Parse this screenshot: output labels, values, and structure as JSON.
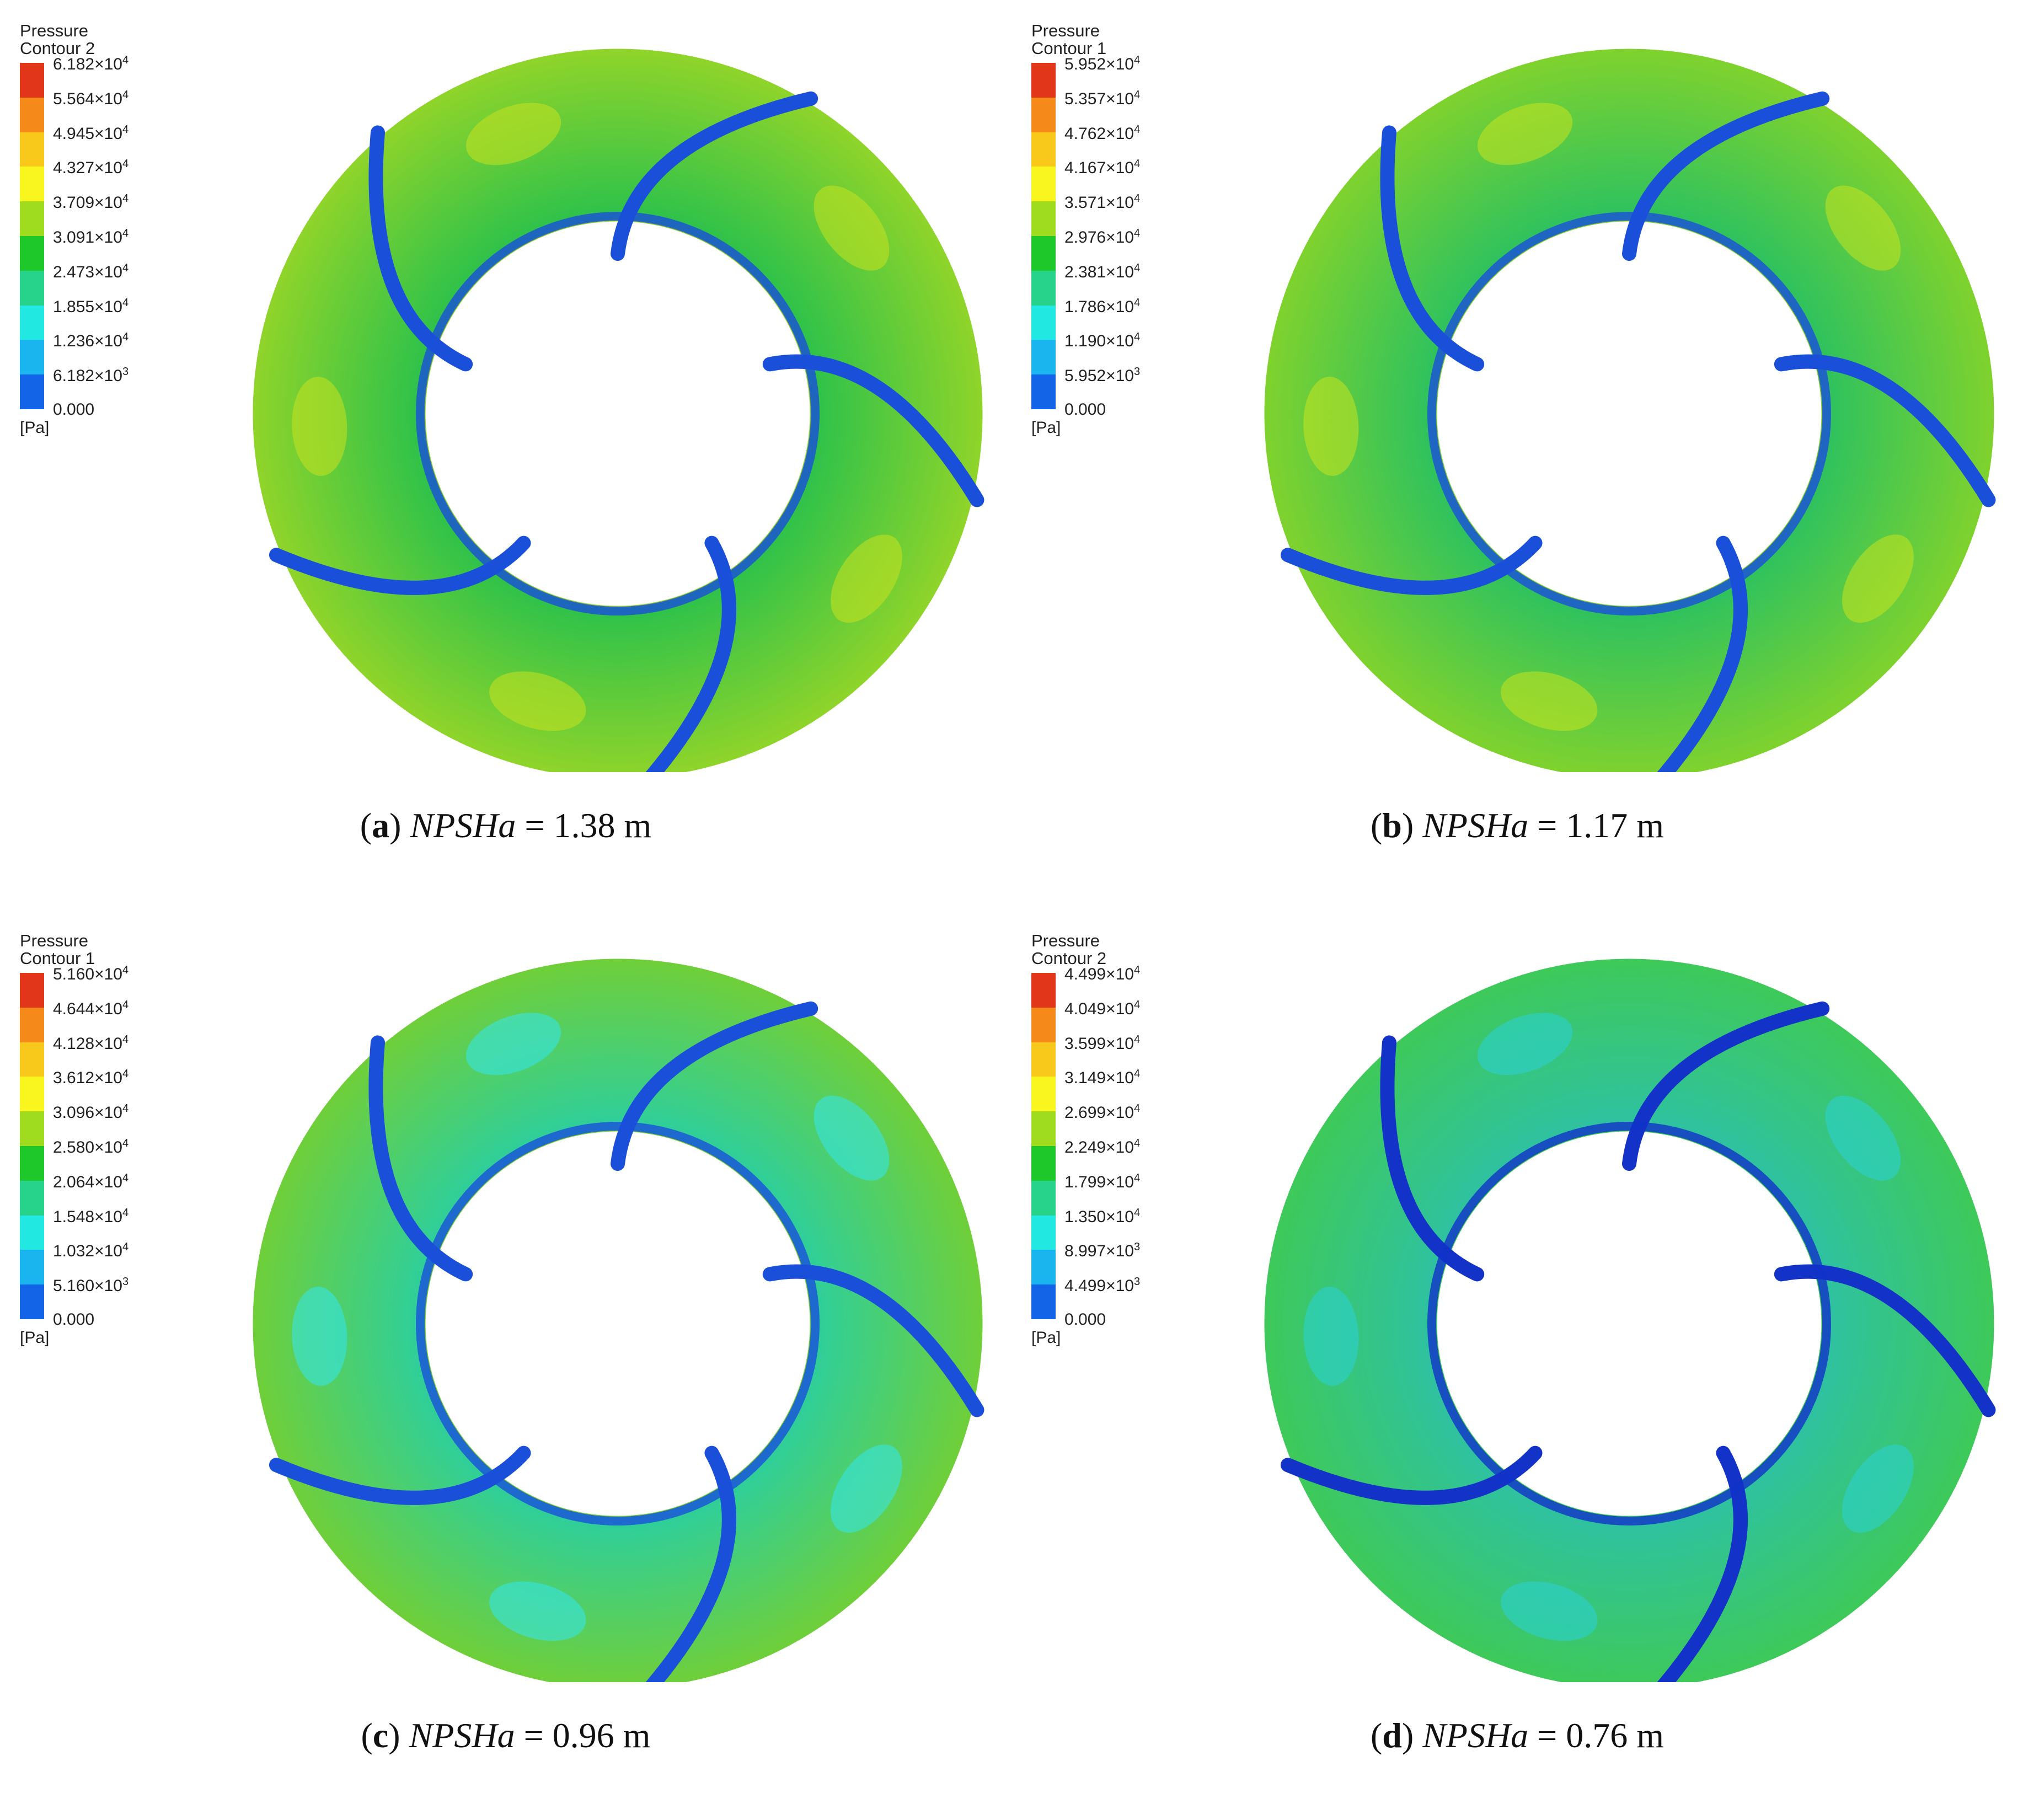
{
  "panels": [
    {
      "id": "a",
      "legend": {
        "title_line1": "Pressure",
        "title_line2": "Contour 2",
        "labels": [
          "6.182×10",
          "5.564×10",
          "4.945×10",
          "4.327×10",
          "3.709×10",
          "3.091×10",
          "2.473×10",
          "1.855×10",
          "1.236×10",
          "6.182×10",
          "0.000"
        ],
        "exponents": [
          "4",
          "4",
          "4",
          "4",
          "4",
          "4",
          "4",
          "4",
          "4",
          "3",
          ""
        ],
        "unit": "[Pa]"
      },
      "caption": {
        "letter": "a",
        "var": "NPSHa",
        "rest": " = 1.38 m"
      },
      "fill_colors": {
        "outer": "#8fd42a",
        "inner": "#2fc24a",
        "hub": "#1a4fd9",
        "accent": "#c9e21f"
      }
    },
    {
      "id": "b",
      "legend": {
        "title_line1": "Pressure",
        "title_line2": "Contour 1",
        "labels": [
          "5.952×10",
          "5.357×10",
          "4.762×10",
          "4.167×10",
          "3.571×10",
          "2.976×10",
          "2.381×10",
          "1.786×10",
          "1.190×10",
          "5.952×10",
          "0.000"
        ],
        "exponents": [
          "4",
          "4",
          "4",
          "4",
          "4",
          "4",
          "4",
          "4",
          "4",
          "3",
          ""
        ],
        "unit": "[Pa]"
      },
      "caption": {
        "letter": "b",
        "var": "NPSHa",
        "rest": " = 1.17 m"
      },
      "fill_colors": {
        "outer": "#7fd22e",
        "inner": "#2fc25e",
        "hub": "#1a4fd9",
        "accent": "#c6e31f"
      }
    },
    {
      "id": "c",
      "legend": {
        "title_line1": "Pressure",
        "title_line2": "Contour 1",
        "labels": [
          "5.160×10",
          "4.644×10",
          "4.128×10",
          "3.612×10",
          "3.096×10",
          "2.580×10",
          "2.064×10",
          "1.548×10",
          "1.032×10",
          "5.160×10",
          "0.000"
        ],
        "exponents": [
          "4",
          "4",
          "4",
          "4",
          "4",
          "4",
          "4",
          "4",
          "4",
          "3",
          ""
        ],
        "unit": "[Pa]"
      },
      "caption": {
        "letter": "c",
        "var": "NPSHa",
        "rest": " = 0.96 m"
      },
      "fill_colors": {
        "outer": "#6fcf3a",
        "inner": "#2fcf9a",
        "hub": "#1a4fd9",
        "accent": "#33e8f0"
      }
    },
    {
      "id": "d",
      "legend": {
        "title_line1": "Pressure",
        "title_line2": "Contour 2",
        "labels": [
          "4.499×10",
          "4.049×10",
          "3.599×10",
          "3.149×10",
          "2.699×10",
          "2.249×10",
          "1.799×10",
          "1.350×10",
          "8.997×10",
          "4.499×10",
          "0.000"
        ],
        "exponents": [
          "4",
          "4",
          "4",
          "4",
          "4",
          "4",
          "4",
          "4",
          "3",
          "3",
          ""
        ],
        "unit": "[Pa]"
      },
      "caption": {
        "letter": "d",
        "var": "NPSHa",
        "rest": " = 0.76 m"
      },
      "fill_colors": {
        "outer": "#3ec95a",
        "inner": "#2fc2a0",
        "hub": "#1232c8",
        "accent": "#2ad2d8"
      }
    }
  ],
  "colormap": [
    "#e2361b",
    "#f58a1a",
    "#f8c81a",
    "#f8f51f",
    "#9fdc1f",
    "#1ec82a",
    "#27d28a",
    "#21e8e0",
    "#1ab4ee",
    "#1464e8",
    "#0a2fd6"
  ]
}
